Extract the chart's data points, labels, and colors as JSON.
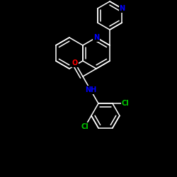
{
  "background": "#000000",
  "bond_color": "#ffffff",
  "atom_colors": {
    "N": "#0000ff",
    "O": "#ff0000",
    "Cl": "#00cc00",
    "C": "#ffffff",
    "H": "#ffffff"
  },
  "figsize": [
    2.5,
    2.5
  ],
  "dpi": 100,
  "lw": 1.1,
  "fs": 7.0
}
